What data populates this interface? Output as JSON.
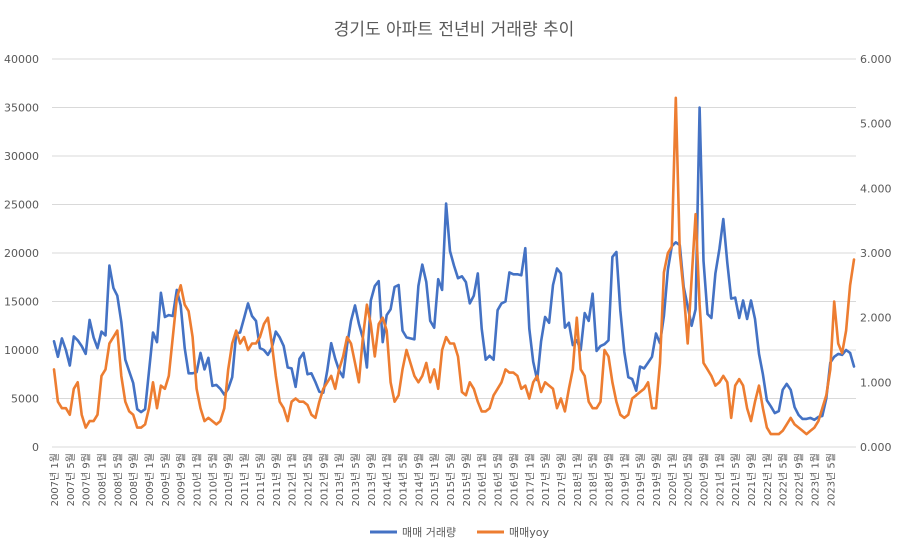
{
  "chart_data": {
    "type": "line",
    "title": "경기도 아파트 전년비 거래량 추이",
    "y_left": {
      "min": 0,
      "max": 40000,
      "ticks": [
        "0",
        "5000",
        "10000",
        "15000",
        "20000",
        "25000",
        "30000",
        "35000",
        "40000"
      ]
    },
    "y_right": {
      "min": 0,
      "max": 6,
      "ticks": [
        "0.000",
        "1.000",
        "2.000",
        "3.000",
        "4.000",
        "5.000",
        "6.000"
      ]
    },
    "grid": true,
    "legend_position": "bottom",
    "start_year": 2007,
    "start_month": 1,
    "x_tick_labels": [
      "2007년 1월",
      "2007년 5월",
      "2007년 9월",
      "2008년 1월",
      "2008년 5월",
      "2008년 9월",
      "2009년 1월",
      "2009년 5월",
      "2009년 9월",
      "2010년 1월",
      "2010년 5월",
      "2010년 9월",
      "2011년 1월",
      "2011년 5월",
      "2011년 9월",
      "2012년 1월",
      "2012년 5월",
      "2012년 9월",
      "2013년 1월",
      "2013년 5월",
      "2013년 9월",
      "2014년 1월",
      "2014년 5월",
      "2014년 9월",
      "2015년 1월",
      "2015년 5월",
      "2015년 9월",
      "2016년 1월",
      "2016년 5월",
      "2016년 9월",
      "2017년 1월",
      "2017년 5월",
      "2017년 9월",
      "2018년 1월",
      "2018년 5월",
      "2018년 9월",
      "2019년 1월",
      "2019년 5월",
      "2019년 9월",
      "2020년 1월",
      "2020년 5월",
      "2020년 9월",
      "2021년 1월",
      "2021년 5월",
      "2021년 9월",
      "2022년 1월",
      "2022년 5월",
      "2022년 9월",
      "2023년 1월",
      "2023년 5월"
    ],
    "series": [
      {
        "name": "매매 거래량",
        "axis": "left",
        "color": "#4472C4",
        "values": [
          10900,
          9300,
          11200,
          10000,
          8400,
          11400,
          11000,
          10400,
          9600,
          13100,
          11300,
          10200,
          11900,
          11500,
          18700,
          16400,
          15600,
          12900,
          9000,
          7800,
          6600,
          3900,
          3600,
          3900,
          7800,
          11800,
          10800,
          15900,
          13400,
          13600,
          13500,
          16200,
          14600,
          10200,
          7600,
          7600,
          7700,
          9700,
          8000,
          9200,
          6300,
          6400,
          6000,
          5400,
          6000,
          7200,
          11700,
          11800,
          13300,
          14800,
          13500,
          13000,
          10200,
          10000,
          9500,
          10200,
          11900,
          11300,
          10400,
          8200,
          8100,
          6200,
          9100,
          9700,
          7500,
          7600,
          6700,
          5700,
          5600,
          7900,
          10700,
          9100,
          7900,
          7200,
          10500,
          13000,
          14600,
          12700,
          11200,
          8200,
          15100,
          16600,
          17100,
          10800,
          13600,
          14200,
          16500,
          16700,
          12000,
          11300,
          11200,
          11100,
          16600,
          18800,
          17000,
          13000,
          12300,
          17300,
          16200,
          25100,
          20200,
          18700,
          17400,
          17600,
          17000,
          14800,
          15600,
          17900,
          12200,
          9000,
          9400,
          9000,
          14100,
          14800,
          15000,
          18000,
          17800,
          17800,
          17700,
          20500,
          12200,
          8800,
          6900,
          10900,
          13400,
          12800,
          16700,
          18400,
          17900,
          12300,
          12800,
          10500,
          11000,
          10000,
          13800,
          13000,
          15800,
          9900,
          10400,
          10600,
          11000,
          19600,
          20100,
          14100,
          9800,
          7200,
          7000,
          5800,
          8300,
          8100,
          8700,
          9300,
          11700,
          10700,
          13500,
          18300,
          20700,
          21100,
          20800,
          16500,
          14500,
          12500,
          14200,
          35000,
          19200,
          13700,
          13300,
          17900,
          20400,
          23500,
          19000,
          15300,
          15400,
          13300,
          15100,
          13200,
          15100,
          13200,
          9600,
          7500,
          4800,
          4200,
          3500,
          3700,
          5900,
          6500,
          5900,
          4100,
          3300,
          2900,
          2900,
          3000,
          2800,
          3100,
          3200,
          5000,
          8700,
          9300,
          9600,
          9500,
          10000,
          9700,
          8300
        ]
      },
      {
        "name": "매매yoy",
        "axis": "right",
        "color": "#ED7D31",
        "values": [
          1.2,
          0.7,
          0.6,
          0.6,
          0.5,
          0.9,
          1.0,
          0.5,
          0.3,
          0.4,
          0.4,
          0.5,
          1.1,
          1.2,
          1.6,
          1.7,
          1.8,
          1.1,
          0.7,
          0.55,
          0.5,
          0.3,
          0.3,
          0.35,
          0.6,
          1.0,
          0.6,
          0.95,
          0.9,
          1.1,
          1.7,
          2.3,
          2.5,
          2.2,
          2.1,
          1.7,
          0.9,
          0.6,
          0.4,
          0.45,
          0.4,
          0.35,
          0.4,
          0.6,
          1.2,
          1.6,
          1.8,
          1.6,
          1.7,
          1.5,
          1.6,
          1.6,
          1.7,
          1.9,
          2.0,
          1.6,
          1.1,
          0.7,
          0.6,
          0.4,
          0.7,
          0.75,
          0.7,
          0.7,
          0.65,
          0.5,
          0.45,
          0.7,
          0.9,
          1.0,
          1.1,
          0.9,
          1.2,
          1.4,
          1.7,
          1.6,
          1.3,
          1.0,
          1.7,
          2.2,
          1.9,
          1.4,
          1.9,
          2.0,
          1.8,
          1.0,
          0.7,
          0.8,
          1.2,
          1.5,
          1.3,
          1.1,
          1.0,
          1.1,
          1.3,
          1.0,
          1.2,
          0.9,
          1.5,
          1.7,
          1.6,
          1.6,
          1.4,
          0.85,
          0.8,
          1.0,
          0.9,
          0.7,
          0.55,
          0.55,
          0.6,
          0.8,
          0.9,
          1.0,
          1.2,
          1.15,
          1.15,
          1.1,
          0.9,
          0.95,
          0.75,
          1.0,
          1.1,
          0.85,
          1.0,
          0.95,
          0.9,
          0.6,
          0.75,
          0.55,
          0.9,
          1.2,
          2.0,
          1.2,
          1.1,
          0.7,
          0.6,
          0.6,
          0.7,
          1.5,
          1.4,
          1.0,
          0.7,
          0.5,
          0.45,
          0.5,
          0.75,
          0.8,
          0.85,
          0.9,
          1.0,
          0.6,
          0.6,
          1.3,
          2.7,
          3.0,
          3.1,
          5.4,
          3.0,
          2.4,
          1.6,
          2.6,
          3.6,
          2.2,
          1.3,
          1.2,
          1.1,
          0.95,
          1.0,
          1.1,
          1.0,
          0.45,
          0.95,
          1.05,
          0.95,
          0.6,
          0.4,
          0.7,
          0.95,
          0.6,
          0.3,
          0.2,
          0.2,
          0.2,
          0.25,
          0.35,
          0.45,
          0.35,
          0.3,
          0.25,
          0.2,
          0.25,
          0.3,
          0.4,
          0.6,
          0.8,
          1.2,
          2.25,
          1.6,
          1.45,
          1.8,
          2.5,
          2.9
        ]
      }
    ]
  }
}
